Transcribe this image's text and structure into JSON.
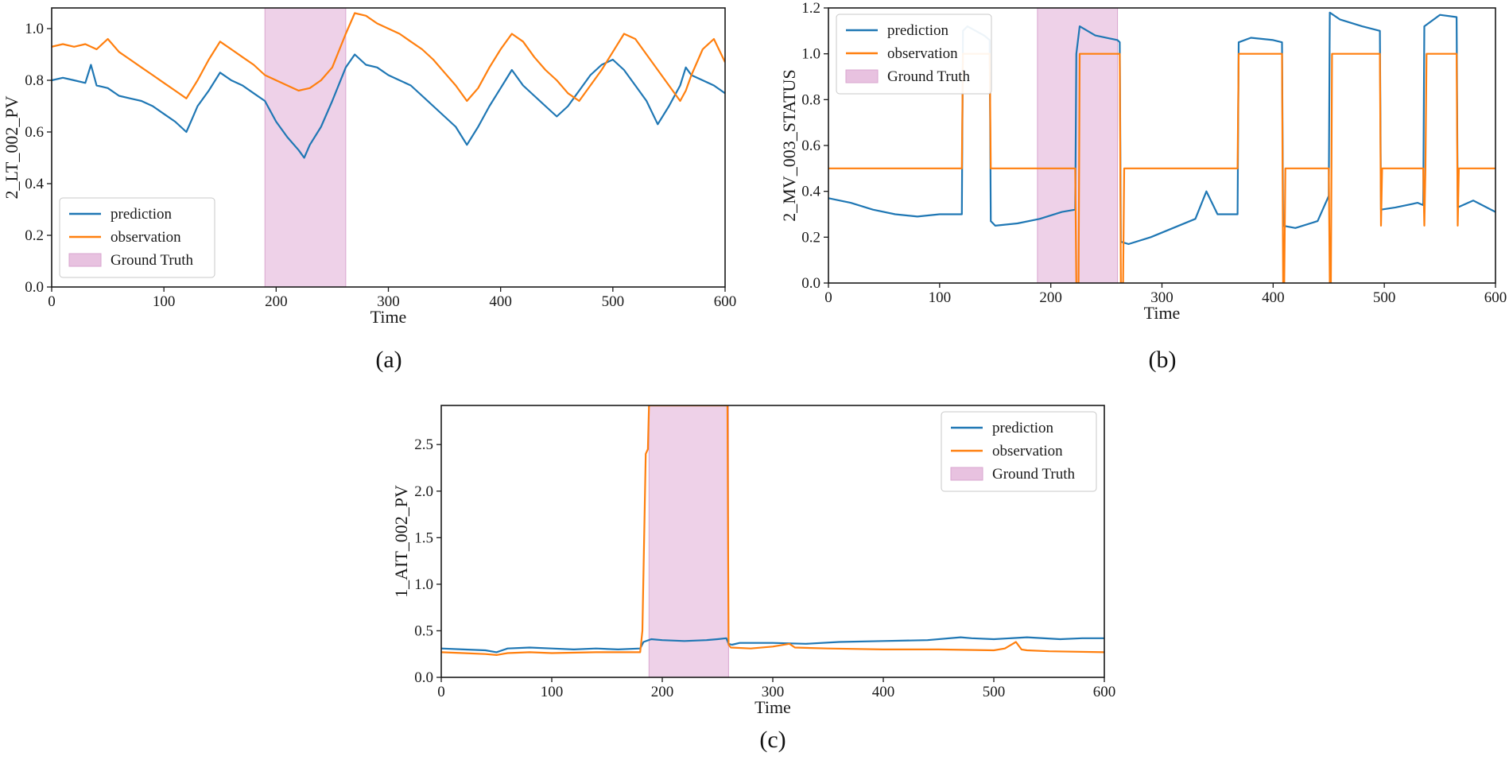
{
  "chart_data": [
    {
      "type": "line",
      "panel_label": "(a)",
      "xlabel": "Time",
      "ylabel": "2_LT_002_PV",
      "xlim": [
        0,
        600
      ],
      "ylim": [
        0.0,
        1.08
      ],
      "xticks": [
        "0",
        "100",
        "200",
        "300",
        "400",
        "500",
        "600"
      ],
      "yticks": [
        "0.0",
        "0.2",
        "0.4",
        "0.6",
        "0.8",
        "1.0"
      ],
      "legend_loc": "lower-left",
      "legend": [
        "prediction",
        "observation",
        "Ground Truth"
      ],
      "ground_truth": [
        190,
        262
      ],
      "series": [
        {
          "name": "prediction",
          "color": "#1f77b4",
          "x": [
            0,
            10,
            20,
            30,
            35,
            40,
            50,
            60,
            70,
            80,
            90,
            100,
            110,
            120,
            125,
            130,
            140,
            150,
            160,
            170,
            180,
            190,
            200,
            210,
            220,
            225,
            230,
            240,
            250,
            262,
            270,
            280,
            290,
            300,
            310,
            320,
            330,
            340,
            350,
            360,
            370,
            380,
            390,
            400,
            410,
            420,
            430,
            440,
            450,
            460,
            470,
            480,
            490,
            500,
            510,
            520,
            530,
            540,
            550,
            560,
            565,
            570,
            580,
            590,
            600
          ],
          "y": [
            0.8,
            0.81,
            0.8,
            0.79,
            0.86,
            0.78,
            0.77,
            0.74,
            0.73,
            0.72,
            0.7,
            0.67,
            0.64,
            0.6,
            0.65,
            0.7,
            0.76,
            0.83,
            0.8,
            0.78,
            0.75,
            0.72,
            0.64,
            0.58,
            0.53,
            0.5,
            0.55,
            0.62,
            0.72,
            0.85,
            0.9,
            0.86,
            0.85,
            0.82,
            0.8,
            0.78,
            0.74,
            0.7,
            0.66,
            0.62,
            0.55,
            0.62,
            0.7,
            0.77,
            0.84,
            0.78,
            0.74,
            0.7,
            0.66,
            0.7,
            0.76,
            0.82,
            0.86,
            0.88,
            0.84,
            0.78,
            0.72,
            0.63,
            0.7,
            0.78,
            0.85,
            0.82,
            0.8,
            0.78,
            0.75
          ]
        },
        {
          "name": "observation",
          "color": "#ff7f0e",
          "x": [
            0,
            10,
            20,
            30,
            40,
            50,
            60,
            70,
            80,
            90,
            100,
            110,
            120,
            130,
            140,
            150,
            160,
            170,
            180,
            190,
            200,
            210,
            220,
            230,
            240,
            250,
            262,
            270,
            280,
            290,
            300,
            310,
            320,
            330,
            340,
            350,
            360,
            370,
            380,
            390,
            400,
            410,
            420,
            430,
            440,
            450,
            460,
            470,
            480,
            490,
            500,
            510,
            520,
            530,
            540,
            550,
            560,
            565,
            570,
            580,
            590,
            600
          ],
          "y": [
            0.93,
            0.94,
            0.93,
            0.94,
            0.92,
            0.96,
            0.91,
            0.88,
            0.85,
            0.82,
            0.79,
            0.76,
            0.73,
            0.8,
            0.88,
            0.95,
            0.92,
            0.89,
            0.86,
            0.82,
            0.8,
            0.78,
            0.76,
            0.77,
            0.8,
            0.85,
            0.98,
            1.06,
            1.05,
            1.02,
            1.0,
            0.98,
            0.95,
            0.92,
            0.88,
            0.83,
            0.78,
            0.72,
            0.77,
            0.85,
            0.92,
            0.98,
            0.95,
            0.89,
            0.84,
            0.8,
            0.75,
            0.72,
            0.78,
            0.84,
            0.91,
            0.98,
            0.96,
            0.9,
            0.84,
            0.78,
            0.72,
            0.76,
            0.82,
            0.92,
            0.96,
            0.87
          ]
        }
      ]
    },
    {
      "type": "line",
      "panel_label": "(b)",
      "xlabel": "Time",
      "ylabel": "2_MV_003_STATUS",
      "xlim": [
        0,
        600
      ],
      "ylim": [
        0.0,
        1.2
      ],
      "xticks": [
        "0",
        "100",
        "200",
        "300",
        "400",
        "500",
        "600"
      ],
      "yticks": [
        "0.0",
        "0.2",
        "0.4",
        "0.6",
        "0.8",
        "1.0",
        "1.2"
      ],
      "legend_loc": "top-left",
      "legend": [
        "prediction",
        "observation",
        "Ground Truth"
      ],
      "ground_truth": [
        188,
        260
      ],
      "series": [
        {
          "name": "prediction",
          "color": "#1f77b4",
          "x": [
            0,
            20,
            40,
            60,
            80,
            100,
            120,
            121,
            125,
            140,
            145,
            146,
            150,
            170,
            190,
            210,
            222,
            223,
            226,
            240,
            260,
            262,
            263,
            270,
            290,
            310,
            330,
            340,
            350,
            368,
            369,
            380,
            400,
            408,
            409,
            420,
            440,
            450,
            451,
            460,
            480,
            496,
            497,
            510,
            530,
            535,
            536,
            550,
            565,
            566,
            580,
            600
          ],
          "y": [
            0.37,
            0.35,
            0.32,
            0.3,
            0.29,
            0.3,
            0.3,
            1.1,
            1.12,
            1.08,
            1.06,
            0.27,
            0.25,
            0.26,
            0.28,
            0.31,
            0.32,
            1.0,
            1.12,
            1.08,
            1.06,
            1.05,
            0.18,
            0.17,
            0.2,
            0.24,
            0.28,
            0.4,
            0.3,
            0.3,
            1.05,
            1.07,
            1.06,
            1.05,
            0.25,
            0.24,
            0.27,
            0.38,
            1.18,
            1.15,
            1.12,
            1.1,
            0.32,
            0.33,
            0.35,
            0.34,
            1.12,
            1.17,
            1.16,
            0.33,
            0.36,
            0.31
          ]
        },
        {
          "name": "observation",
          "color": "#ff7f0e",
          "x": [
            0,
            120,
            121,
            145,
            146,
            222,
            223,
            225,
            226,
            262,
            263,
            265,
            266,
            368,
            369,
            408,
            409,
            410,
            411,
            450,
            451,
            452,
            453,
            496,
            497,
            498,
            499,
            535,
            536,
            537,
            538,
            565,
            566,
            567,
            568,
            600
          ],
          "y": [
            0.5,
            0.5,
            1.0,
            1.0,
            0.5,
            0.5,
            0.0,
            0.0,
            1.0,
            1.0,
            0.0,
            0.0,
            0.5,
            0.5,
            1.0,
            1.0,
            0.0,
            0.0,
            0.5,
            0.5,
            0.0,
            0.0,
            1.0,
            1.0,
            0.25,
            0.5,
            0.5,
            0.5,
            0.25,
            0.5,
            1.0,
            1.0,
            0.25,
            0.5,
            0.5,
            0.5
          ]
        }
      ]
    },
    {
      "type": "line",
      "panel_label": "(c)",
      "xlabel": "Time",
      "ylabel": "1_AIT_002_PV",
      "xlim": [
        0,
        600
      ],
      "ylim": [
        0.0,
        2.92
      ],
      "xticks": [
        "0",
        "100",
        "200",
        "300",
        "400",
        "500",
        "600"
      ],
      "yticks": [
        "0.0",
        "0.5",
        "1.0",
        "1.5",
        "2.0",
        "2.5"
      ],
      "legend_loc": "top-right",
      "legend": [
        "prediction",
        "observation",
        "Ground Truth"
      ],
      "ground_truth": [
        188,
        260
      ],
      "series": [
        {
          "name": "prediction",
          "color": "#1f77b4",
          "x": [
            0,
            20,
            40,
            50,
            60,
            80,
            100,
            120,
            140,
            160,
            180,
            183,
            190,
            200,
            220,
            240,
            250,
            258,
            260,
            263,
            270,
            300,
            330,
            360,
            400,
            440,
            470,
            480,
            500,
            530,
            560,
            580,
            600
          ],
          "y": [
            0.31,
            0.3,
            0.29,
            0.27,
            0.31,
            0.32,
            0.31,
            0.3,
            0.31,
            0.3,
            0.31,
            0.38,
            0.41,
            0.4,
            0.39,
            0.4,
            0.41,
            0.42,
            0.36,
            0.35,
            0.37,
            0.37,
            0.36,
            0.38,
            0.39,
            0.4,
            0.43,
            0.42,
            0.41,
            0.43,
            0.41,
            0.42,
            0.42
          ]
        },
        {
          "name": "observation",
          "color": "#ff7f0e",
          "x": [
            0,
            20,
            40,
            50,
            60,
            80,
            100,
            140,
            180,
            182,
            185,
            187,
            188,
            190,
            258,
            259,
            260,
            262,
            280,
            300,
            315,
            320,
            350,
            400,
            450,
            500,
            510,
            520,
            525,
            530,
            550,
            600
          ],
          "y": [
            0.27,
            0.26,
            0.25,
            0.24,
            0.26,
            0.27,
            0.26,
            0.27,
            0.27,
            0.5,
            2.4,
            2.45,
            2.92,
            2.92,
            2.92,
            2.92,
            0.35,
            0.32,
            0.31,
            0.33,
            0.36,
            0.32,
            0.31,
            0.3,
            0.3,
            0.29,
            0.31,
            0.38,
            0.3,
            0.29,
            0.28,
            0.27
          ]
        }
      ]
    }
  ]
}
